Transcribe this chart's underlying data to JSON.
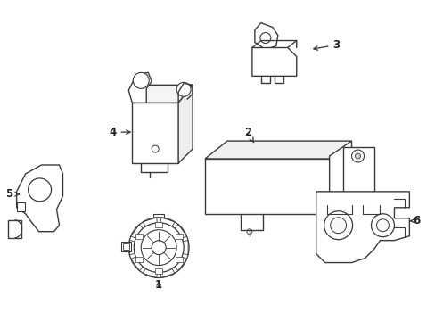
{
  "bg_color": "#ffffff",
  "line_color": "#3a3a3a",
  "lw": 1.0,
  "fig_w": 4.89,
  "fig_h": 3.6,
  "dpi": 100
}
